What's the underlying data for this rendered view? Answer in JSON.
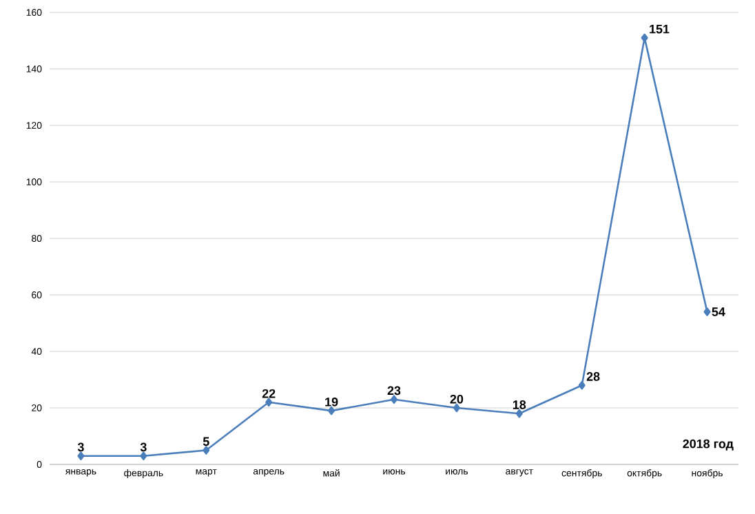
{
  "chart_data": {
    "type": "line",
    "categories": [
      "январь",
      "февраль",
      "март",
      "апрель",
      "май",
      "июнь",
      "июль",
      "август",
      "сентябрь",
      "октябрь",
      "ноябрь"
    ],
    "values": [
      3,
      3,
      5,
      22,
      19,
      23,
      20,
      18,
      28,
      151,
      54
    ],
    "color": "#4a7ebb",
    "marker": "diamond",
    "data_labels": true,
    "grid": "y",
    "ylim": [
      0,
      160
    ],
    "yticks": [
      0,
      20,
      40,
      60,
      80,
      100,
      120,
      140,
      160
    ],
    "annotations": [
      "2018 год"
    ]
  }
}
